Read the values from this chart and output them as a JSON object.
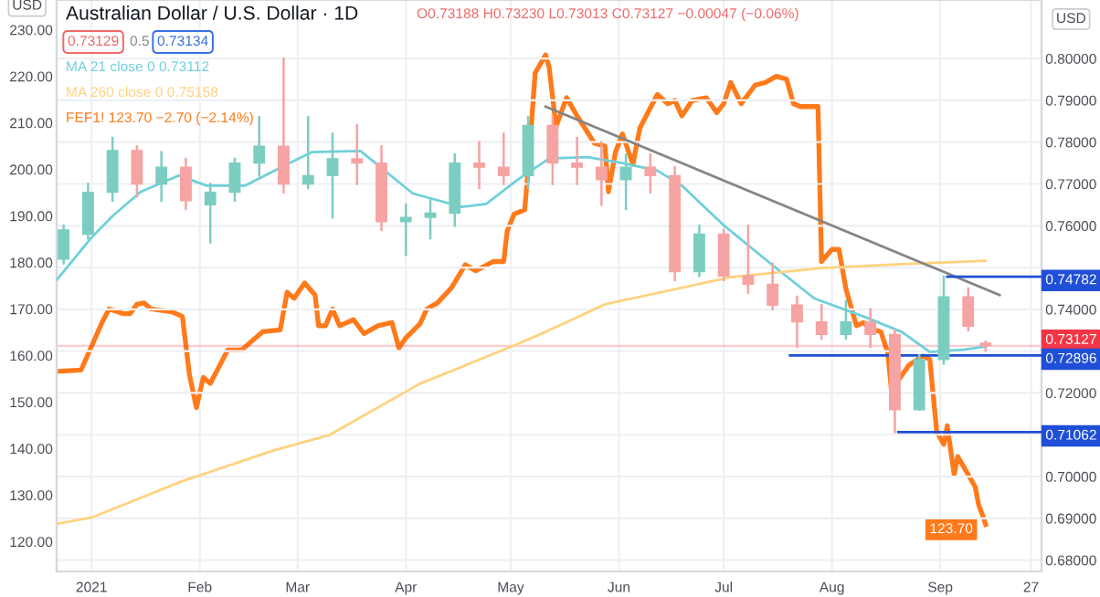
{
  "chart_data": {
    "type": "candlestick",
    "title": "Australian Dollar / U.S. Dollar · 1D",
    "ylabel": "USD",
    "y2label": "USD",
    "annotations": [
      "O0.73188 H0.73230 L0.73013 C0.73127 −0.00047 (−0.06%)",
      "0.73129",
      "0.5",
      "0.73134"
    ],
    "xlim": [
      "2020-12-22",
      "2021-09-30"
    ],
    "xticks": [
      {
        "value": "2021-01-01",
        "label": "2021"
      },
      {
        "value": "2021-02-01",
        "label": "Feb"
      },
      {
        "value": "2021-03-01",
        "label": "Mar"
      },
      {
        "value": "2021-04-01",
        "label": "Apr"
      },
      {
        "value": "2021-05-01",
        "label": "May"
      },
      {
        "value": "2021-06-01",
        "label": "Jun"
      },
      {
        "value": "2021-07-01",
        "label": "Jul"
      },
      {
        "value": "2021-08-01",
        "label": "Aug"
      },
      {
        "value": "2021-09-01",
        "label": "Sep"
      },
      {
        "value": "2021-09-27",
        "label": "27"
      }
    ],
    "ylim": [
      113.6,
      236.4
    ],
    "yticks": [
      {
        "value": 120,
        "label": "120.00"
      },
      {
        "value": 130,
        "label": "130.00"
      },
      {
        "value": 140,
        "label": "140.00"
      },
      {
        "value": 150,
        "label": "150.00"
      },
      {
        "value": 160,
        "label": "160.00"
      },
      {
        "value": 170,
        "label": "170.00"
      },
      {
        "value": 180,
        "label": "180.00"
      },
      {
        "value": 190,
        "label": "190.00"
      },
      {
        "value": 200,
        "label": "200.00"
      },
      {
        "value": 210,
        "label": "210.00"
      },
      {
        "value": 220,
        "label": "220.00"
      },
      {
        "value": 230,
        "label": "230.00"
      }
    ],
    "y2lim": [
      0.6773,
      0.814
    ],
    "y2ticks": [
      {
        "value": 0.68,
        "label": "0.68000"
      },
      {
        "value": 0.69,
        "label": "0.69000"
      },
      {
        "value": 0.7,
        "label": "0.70000"
      },
      {
        "value": 0.71,
        "label": null
      },
      {
        "value": 0.72,
        "label": "0.72000"
      },
      {
        "value": 0.73,
        "label": null
      },
      {
        "value": 0.74,
        "label": "0.74000"
      },
      {
        "value": 0.75,
        "label": null
      },
      {
        "value": 0.76,
        "label": "0.76000"
      },
      {
        "value": 0.77,
        "label": "0.77000"
      },
      {
        "value": 0.78,
        "label": "0.78000"
      },
      {
        "value": 0.79,
        "label": "0.79000"
      },
      {
        "value": 0.8,
        "label": "0.80000"
      }
    ],
    "grid": true,
    "legend": "top left",
    "ref_lines": [
      {
        "axis": "y2",
        "value": 0.73127,
        "label": "0.73127",
        "color": "#f23645"
      }
    ],
    "series": [
      {
        "axis": "y2",
        "x": [
          "2020-12-24",
          "2020-12-31",
          "2021-01-07",
          "2021-01-14",
          "2021-01-21",
          "2021-01-28",
          "2021-02-04",
          "2021-02-11",
          "2021-02-18",
          "2021-02-25",
          "2021-03-04",
          "2021-03-11",
          "2021-03-18",
          "2021-03-25",
          "2021-04-01",
          "2021-04-08",
          "2021-04-15",
          "2021-04-22",
          "2021-04-29",
          "2021-05-06",
          "2021-05-13",
          "2021-05-20",
          "2021-05-27",
          "2021-06-03",
          "2021-06-10",
          "2021-06-17",
          "2021-06-24",
          "2021-07-01",
          "2021-07-08",
          "2021-07-15",
          "2021-07-22",
          "2021-07-29",
          "2021-08-05",
          "2021-08-12",
          "2021-08-19",
          "2021-08-26",
          "2021-09-02",
          "2021-09-09",
          "2021-09-14"
        ],
        "ohlc": [
          [
            0.752,
            0.76,
            0.751,
            0.759
          ],
          [
            0.758,
            0.77,
            0.757,
            0.768
          ],
          [
            0.768,
            0.781,
            0.766,
            0.778
          ],
          [
            0.778,
            0.779,
            0.767,
            0.77
          ],
          [
            0.77,
            0.7776,
            0.766,
            0.774
          ],
          [
            0.774,
            0.776,
            0.764,
            0.766
          ],
          [
            0.765,
            0.77,
            0.756,
            0.768
          ],
          [
            0.768,
            0.776,
            0.766,
            0.775
          ],
          [
            0.775,
            0.786,
            0.772,
            0.779
          ],
          [
            0.779,
            0.8,
            0.768,
            0.77
          ],
          [
            0.77,
            0.786,
            0.769,
            0.772
          ],
          [
            0.772,
            0.782,
            0.762,
            0.776
          ],
          [
            0.776,
            0.784,
            0.77,
            0.775
          ],
          [
            0.775,
            0.779,
            0.759,
            0.761
          ],
          [
            0.761,
            0.765,
            0.753,
            0.762
          ],
          [
            0.762,
            0.766,
            0.757,
            0.763
          ],
          [
            0.763,
            0.777,
            0.76,
            0.775
          ],
          [
            0.775,
            0.78,
            0.769,
            0.774
          ],
          [
            0.774,
            0.782,
            0.77,
            0.772
          ],
          [
            0.772,
            0.786,
            0.769,
            0.784
          ],
          [
            0.784,
            0.786,
            0.77,
            0.775
          ],
          [
            0.775,
            0.781,
            0.77,
            0.774
          ],
          [
            0.774,
            0.78,
            0.765,
            0.771
          ],
          [
            0.771,
            0.777,
            0.764,
            0.774
          ],
          [
            0.774,
            0.777,
            0.768,
            0.772
          ],
          [
            0.772,
            0.774,
            0.747,
            0.749
          ],
          [
            0.749,
            0.76,
            0.748,
            0.758
          ],
          [
            0.758,
            0.759,
            0.747,
            0.748
          ],
          [
            0.748,
            0.76,
            0.744,
            0.746
          ],
          [
            0.746,
            0.751,
            0.74,
            0.741
          ],
          [
            0.741,
            0.743,
            0.731,
            0.737
          ],
          [
            0.737,
            0.741,
            0.733,
            0.734
          ],
          [
            0.734,
            0.742,
            0.733,
            0.737
          ],
          [
            0.737,
            0.74,
            0.731,
            0.734
          ],
          [
            0.734,
            0.735,
            0.7106,
            0.716
          ],
          [
            0.716,
            0.729,
            0.716,
            0.728
          ],
          [
            0.728,
            0.7478,
            0.727,
            0.743
          ],
          [
            0.743,
            0.745,
            0.735,
            0.736
          ],
          [
            0.73188,
            0.7323,
            0.73013,
            0.73127
          ]
        ],
        "colors": [
          "#7ccdc1",
          "#7ccdc1",
          "#7ccdc1",
          "#f5a3a3",
          "#7ccdc1",
          "#f5a3a3",
          "#7ccdc1",
          "#7ccdc1",
          "#7ccdc1",
          "#f5a3a3",
          "#7ccdc1",
          "#7ccdc1",
          "#f5a3a3",
          "#f5a3a3",
          "#7ccdc1",
          "#7ccdc1",
          "#7ccdc1",
          "#f5a3a3",
          "#f5a3a3",
          "#7ccdc1",
          "#f5a3a3",
          "#f5a3a3",
          "#f5a3a3",
          "#7ccdc1",
          "#f5a3a3",
          "#f5a3a3",
          "#7ccdc1",
          "#f5a3a3",
          "#f5a3a3",
          "#f5a3a3",
          "#f5a3a3",
          "#f5a3a3",
          "#7ccdc1",
          "#f5a3a3",
          "#f5a3a3",
          "#7ccdc1",
          "#7ccdc1",
          "#f5a3a3",
          "#f5a3a3"
        ]
      },
      {
        "type": "line",
        "axis": "y2",
        "name": "MA 21 close 0 0.73112",
        "color": "#6fd0da",
        "x": [
          "2020-12-22",
          "2021-01-01",
          "2021-01-07",
          "2021-01-15",
          "2021-01-26",
          "2021-02-03",
          "2021-02-14",
          "2021-02-26",
          "2021-03-05",
          "2021-03-19",
          "2021-04-03",
          "2021-04-17",
          "2021-04-24",
          "2021-05-03",
          "2021-05-12",
          "2021-05-23",
          "2021-06-02",
          "2021-06-12",
          "2021-06-19",
          "2021-07-01",
          "2021-07-17",
          "2021-07-27",
          "2021-08-10",
          "2021-08-21",
          "2021-08-29",
          "2021-09-08",
          "2021-09-14"
        ],
        "values": [
          0.747,
          0.7572,
          0.7623,
          0.7681,
          0.772,
          0.7696,
          0.7696,
          0.7747,
          0.7776,
          0.7779,
          0.7677,
          0.7645,
          0.7652,
          0.771,
          0.7761,
          0.7764,
          0.775,
          0.7732,
          0.7696,
          0.7601,
          0.7492,
          0.7426,
          0.7383,
          0.7346,
          0.7298,
          0.7304,
          0.7311
        ]
      },
      {
        "type": "line",
        "axis": "y2",
        "name": "MA 260 close 0 0.75158",
        "color": "#ffd27f",
        "x": [
          "2020-12-22",
          "2021-01-01",
          "2021-01-27",
          "2021-02-22",
          "2021-03-10",
          "2021-04-05",
          "2021-05-01",
          "2021-05-11",
          "2021-05-28",
          "2021-07-03",
          "2021-07-29",
          "2021-08-24",
          "2021-09-14"
        ],
        "values": [
          0.6887,
          0.6902,
          0.6989,
          0.7062,
          0.7099,
          0.7222,
          0.731,
          0.7346,
          0.7412,
          0.7477,
          0.7499,
          0.7509,
          0.7516
        ]
      },
      {
        "type": "line",
        "axis": "y",
        "name": "FEF1! 123.70 −2.70 (−2.14%)",
        "color": "#ff7a1a",
        "x": [
          "2020-12-22",
          "2020-12-29",
          "2021-01-04",
          "2021-01-06",
          "2021-01-10",
          "2021-01-12",
          "2021-01-14",
          "2021-01-16",
          "2021-01-18",
          "2021-01-24",
          "2021-01-27",
          "2021-01-29",
          "2021-01-31",
          "2021-02-02",
          "2021-02-04",
          "2021-02-09",
          "2021-02-13",
          "2021-02-16",
          "2021-02-19",
          "2021-02-24",
          "2021-02-26",
          "2021-02-28",
          "2021-03-03",
          "2021-03-06",
          "2021-03-07",
          "2021-03-09",
          "2021-03-11",
          "2021-03-13",
          "2021-03-17",
          "2021-03-20",
          "2021-03-24",
          "2021-03-28",
          "2021-03-30",
          "2021-04-01",
          "2021-04-05",
          "2021-04-07",
          "2021-04-10",
          "2021-04-14",
          "2021-04-18",
          "2021-04-21",
          "2021-04-26",
          "2021-04-29",
          "2021-04-30",
          "2021-05-02",
          "2021-05-05",
          "2021-05-06",
          "2021-05-08",
          "2021-05-11",
          "2021-05-12",
          "2021-05-14",
          "2021-05-17",
          "2021-05-20",
          "2021-05-25",
          "2021-05-28",
          "2021-05-29",
          "2021-05-31",
          "2021-06-02",
          "2021-06-05",
          "2021-06-07",
          "2021-06-12",
          "2021-06-15",
          "2021-06-17",
          "2021-06-19",
          "2021-06-22",
          "2021-06-26",
          "2021-06-29",
          "2021-07-01",
          "2021-07-03",
          "2021-07-06",
          "2021-07-10",
          "2021-07-13",
          "2021-07-16",
          "2021-07-19",
          "2021-07-21",
          "2021-07-23",
          "2021-07-28",
          "2021-07-29",
          "2021-08-01",
          "2021-08-03",
          "2021-08-05",
          "2021-08-08",
          "2021-08-10",
          "2021-08-12",
          "2021-08-15",
          "2021-08-17",
          "2021-08-18",
          "2021-08-20",
          "2021-08-23",
          "2021-08-27",
          "2021-08-29",
          "2021-08-31",
          "2021-09-02",
          "2021-09-03",
          "2021-09-05",
          "2021-09-06",
          "2021-09-09",
          "2021-09-11",
          "2021-09-12",
          "2021-09-13",
          "2021-09-14"
        ],
        "values": [
          156.6,
          156.9,
          167.1,
          170,
          169,
          169,
          171,
          171.3,
          170,
          169.4,
          168.4,
          156,
          148.8,
          155.3,
          154,
          161.2,
          161.2,
          163.2,
          165.1,
          165.5,
          173.6,
          172.3,
          175.6,
          173,
          166.4,
          166.4,
          170,
          166.4,
          167.7,
          164.7,
          166.4,
          167.1,
          161.6,
          163.8,
          166.8,
          170,
          171.3,
          174.5,
          179.5,
          178.2,
          180.2,
          180.2,
          186.7,
          190.4,
          191.3,
          199.8,
          220.7,
          224.6,
          222,
          209.2,
          215.4,
          211.5,
          205.6,
          205,
          195.2,
          203.7,
          207.6,
          201.1,
          208.9,
          216.1,
          214.1,
          214.8,
          211.5,
          214.8,
          215.4,
          212.2,
          214.1,
          218.7,
          214.1,
          218.1,
          218.7,
          220,
          219.4,
          214.1,
          213.5,
          213.5,
          180.2,
          182.8,
          182.8,
          174.3,
          166.4,
          167.1,
          165.8,
          165.1,
          160.5,
          152.7,
          154.7,
          157.9,
          159.9,
          159.2,
          143.6,
          140.9,
          144.9,
          134.4,
          138.3,
          134.4,
          131.8,
          127.9,
          125.9,
          123.7
        ],
        "value_labels": [
          null,
          null,
          null,
          null,
          null,
          null,
          null,
          null,
          null,
          null,
          null,
          null,
          null,
          null,
          null,
          null,
          null,
          null,
          null,
          null,
          null,
          null,
          null,
          null,
          null,
          null,
          null,
          null,
          null,
          null,
          null,
          null,
          null,
          null,
          null,
          null,
          null,
          null,
          null,
          null,
          null,
          null,
          null,
          null,
          null,
          null,
          null,
          null,
          null,
          null,
          null,
          null,
          null,
          null,
          null,
          null,
          null,
          null,
          null,
          null,
          null,
          null,
          null,
          null,
          null,
          null,
          null,
          null,
          null,
          null,
          null,
          null,
          null,
          null,
          null,
          null,
          null,
          null,
          null,
          null,
          null,
          null,
          null,
          null,
          null,
          null,
          null,
          null,
          null,
          null,
          null,
          null,
          null,
          null,
          null,
          null,
          null,
          null,
          null,
          "123.70"
        ]
      },
      {
        "type": "line",
        "axis": "y2",
        "color": "#858585",
        "x": [
          "2021-05-11",
          "2021-09-18"
        ],
        "values": [
          0.7885,
          0.7434
        ]
      },
      {
        "type": "line",
        "axis": "y2",
        "color": "#1f4fd6",
        "x": [
          "2021-09-03",
          "2021-09-30"
        ],
        "values": [
          0.74782,
          0.74782
        ],
        "value_labels": [
          null,
          "0.74782"
        ]
      },
      {
        "type": "line",
        "axis": "y2",
        "color": "#1f4fd6",
        "x": [
          "2021-07-20",
          "2021-09-30"
        ],
        "values": [
          0.72896,
          0.72896
        ],
        "value_labels": [
          null,
          "0.72896"
        ]
      },
      {
        "type": "line",
        "axis": "y2",
        "color": "#1f4fd6",
        "x": [
          "2021-08-20",
          "2021-09-30"
        ],
        "values": [
          0.71062,
          0.71062
        ],
        "value_labels": [
          null,
          "0.71062"
        ]
      }
    ]
  }
}
